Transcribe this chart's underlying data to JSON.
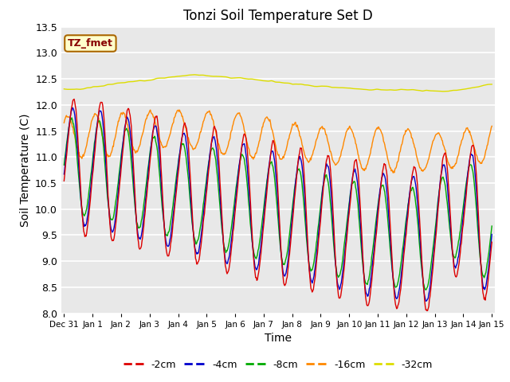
{
  "title": "Tonzi Soil Temperature Set D",
  "xlabel": "Time",
  "ylabel": "Soil Temperature (C)",
  "ylim": [
    8.0,
    13.5
  ],
  "yticks": [
    8.0,
    8.5,
    9.0,
    9.5,
    10.0,
    10.5,
    11.0,
    11.5,
    12.0,
    12.5,
    13.0,
    13.5
  ],
  "label_box_text": "TZ_fmet",
  "series_colors": {
    "-2cm": "#dd0000",
    "-4cm": "#0000cc",
    "-8cm": "#00aa00",
    "-16cm": "#ff8800",
    "-32cm": "#dddd00"
  },
  "plot_bg_color": "#e8e8e8",
  "grid_color": "#ffffff"
}
